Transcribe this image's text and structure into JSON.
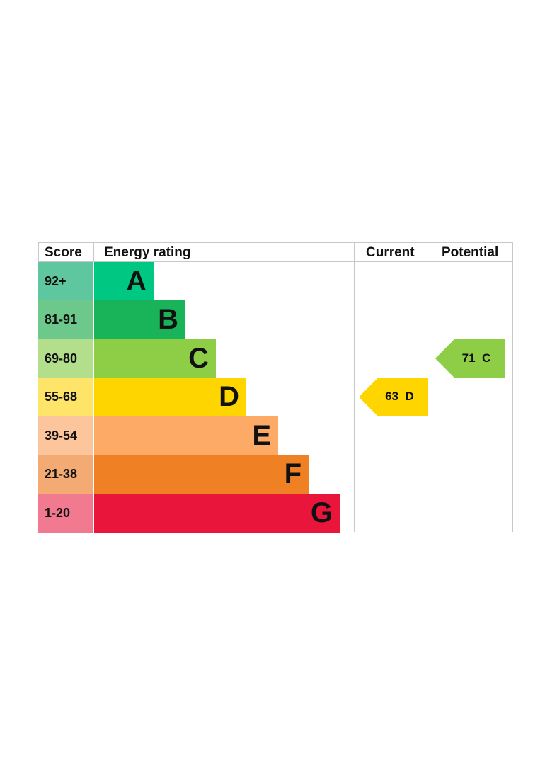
{
  "chart_data": {
    "type": "bar",
    "headers": {
      "score": "Score",
      "rating": "Energy rating",
      "current": "Current",
      "potential": "Potential"
    },
    "bands": [
      {
        "letter": "A",
        "range": "92+",
        "color": "#00c781",
        "score_color": "#5fc7a0"
      },
      {
        "letter": "B",
        "range": "81-91",
        "color": "#19b459",
        "score_color": "#6dc88b"
      },
      {
        "letter": "C",
        "range": "69-80",
        "color": "#8dce46",
        "score_color": "#b3df8c"
      },
      {
        "letter": "D",
        "range": "55-68",
        "color": "#ffd500",
        "score_color": "#ffe46a"
      },
      {
        "letter": "E",
        "range": "39-54",
        "color": "#fcaa65",
        "score_color": "#fdc59c"
      },
      {
        "letter": "F",
        "range": "21-38",
        "color": "#ef8023",
        "score_color": "#f4ab73"
      },
      {
        "letter": "G",
        "range": "1-20",
        "color": "#e9153b",
        "score_color": "#f27a90"
      }
    ],
    "current": {
      "value": 63,
      "letter": "D",
      "label": "63  D",
      "color": "#ffd500"
    },
    "potential": {
      "value": 71,
      "letter": "C",
      "label": "71  C",
      "color": "#8dce46"
    }
  }
}
